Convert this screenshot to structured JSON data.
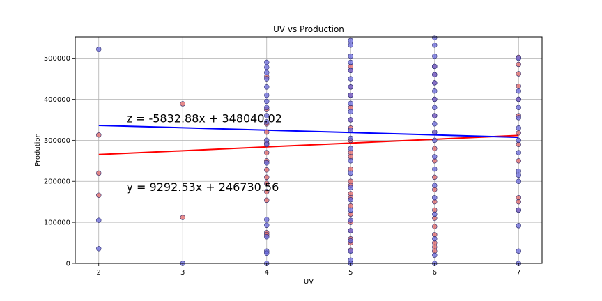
{
  "chart_data": {
    "type": "scatter",
    "title": "UV vs Production",
    "xlabel": "UV",
    "ylabel": "Prodution",
    "xlim": [
      1.72,
      7.28
    ],
    "ylim": [
      0,
      552000
    ],
    "xticks": [
      2,
      3,
      4,
      5,
      6,
      7
    ],
    "yticks": [
      0,
      100000,
      200000,
      300000,
      400000,
      500000
    ],
    "grid": true,
    "series": [
      {
        "color": "#e06666",
        "x": [
          2,
          2,
          2,
          3,
          3,
          4,
          4,
          4,
          4,
          4,
          4,
          4,
          4,
          4,
          4,
          4,
          4,
          4,
          4,
          5,
          5,
          5,
          5,
          5,
          5,
          5,
          5,
          5,
          5,
          5,
          5,
          5,
          5,
          5,
          5,
          5,
          5,
          5,
          5,
          5,
          5,
          6,
          6,
          6,
          6,
          6,
          6,
          6,
          6,
          6,
          6,
          6,
          6,
          6,
          6,
          6,
          6,
          6,
          6,
          7,
          7,
          7,
          7,
          7,
          7,
          7,
          7,
          7,
          7,
          7,
          7
        ],
        "y": [
          313000,
          220000,
          166000,
          389000,
          112000,
          455000,
          375000,
          340000,
          293000,
          250000,
          228000,
          210000,
          195000,
          175000,
          154000,
          75000,
          70000,
          270000,
          320000,
          470000,
          430000,
          380000,
          330000,
          300000,
          270000,
          230000,
          200000,
          170000,
          140000,
          120000,
          100000,
          80000,
          50000,
          32000,
          480000,
          410000,
          350000,
          260000,
          190000,
          160000,
          60000,
          480000,
          460000,
          440000,
          400000,
          360000,
          320000,
          280000,
          250000,
          210000,
          180000,
          150000,
          130000,
          110000,
          90000,
          70000,
          50000,
          40000,
          30000,
          502000,
          485000,
          462000,
          432000,
          400000,
          360000,
          318000,
          290000,
          250000,
          160000,
          150000,
          130000
        ]
      },
      {
        "color": "#6a6adc",
        "x": [
          2,
          2,
          2,
          3,
          4,
          4,
          4,
          4,
          4,
          4,
          4,
          4,
          4,
          4,
          4,
          4,
          4,
          4,
          4,
          4,
          4,
          4,
          4,
          5,
          5,
          5,
          5,
          5,
          5,
          5,
          5,
          5,
          5,
          5,
          5,
          5,
          5,
          5,
          5,
          5,
          5,
          5,
          5,
          5,
          5,
          5,
          5,
          5,
          6,
          6,
          6,
          6,
          6,
          6,
          6,
          6,
          6,
          6,
          6,
          6,
          6,
          6,
          6,
          6,
          6,
          6,
          6,
          6,
          6,
          7,
          7,
          7,
          7,
          7,
          7,
          7,
          7,
          7,
          7,
          7,
          7,
          7,
          7,
          7
        ],
        "y": [
          522000,
          105000,
          36000,
          0,
          490000,
          478000,
          465000,
          450000,
          430000,
          410000,
          395000,
          380000,
          360000,
          345000,
          300000,
          290000,
          245000,
          107000,
          93000,
          65000,
          30000,
          25000,
          0,
          543000,
          532000,
          505000,
          490000,
          470000,
          450000,
          430000,
          410000,
          390000,
          370000,
          350000,
          325000,
          305000,
          280000,
          250000,
          220000,
          185000,
          155000,
          130000,
          105000,
          80000,
          55000,
          30000,
          8000,
          0,
          550000,
          532000,
          505000,
          480000,
          460000,
          440000,
          420000,
          400000,
          380000,
          360000,
          340000,
          320000,
          300000,
          260000,
          230000,
          190000,
          160000,
          120000,
          60000,
          20000,
          0,
          500000,
          420000,
          400000,
          380000,
          355000,
          330000,
          300000,
          270000,
          225000,
          215000,
          200000,
          130000,
          92000,
          30000,
          0
        ]
      }
    ],
    "fit_lines": [
      {
        "color": "#ff0000",
        "slope": 9292.53,
        "intercept": 246730.56,
        "x_range": [
          2,
          7
        ]
      },
      {
        "color": "#0000ff",
        "slope": -5832.88,
        "intercept": 348040.02,
        "x_range": [
          2,
          7
        ]
      }
    ],
    "annotations": [
      {
        "text": "z = -5832.88x + 348040.02",
        "x": 2.33,
        "y": 344000
      },
      {
        "text": "y = 9292.53x + 246730.56",
        "x": 2.33,
        "y": 177000
      }
    ]
  }
}
